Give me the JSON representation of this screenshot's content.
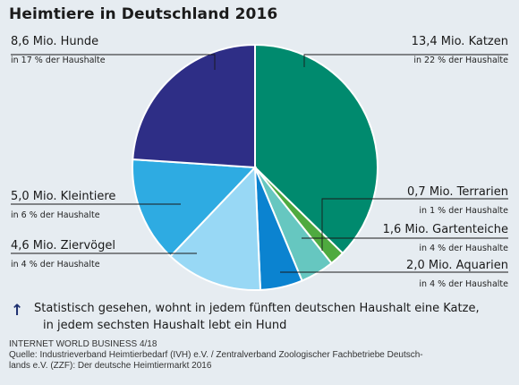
{
  "title": "Heimtiere in Deutschland 2016",
  "chart_data": {
    "type": "pie",
    "slices": [
      {
        "label": "13,4 Mio. Katzen",
        "sub": "in 22 % der Haushalte",
        "value": 13.4,
        "color": "#008a6e"
      },
      {
        "label": "0,7 Mio. Terrarien",
        "sub": "in 1 % der Haushalte",
        "value": 0.7,
        "color": "#4faa3f"
      },
      {
        "label": "1,6 Mio. Gartenteiche",
        "sub": "in 4 % der Haushalte",
        "value": 1.6,
        "color": "#66c7c0"
      },
      {
        "label": "2,0 Mio. Aquarien",
        "sub": "in 4 % der Haushalte",
        "value": 2.0,
        "color": "#0b83d0"
      },
      {
        "label": "4,6 Mio. Ziervögel",
        "sub": "in 4 % der Haushalte",
        "value": 4.6,
        "color": "#98d8f5"
      },
      {
        "label": "5,0 Mio. Kleintiere",
        "sub": "in 6 % der Haushalte",
        "value": 5.0,
        "color": "#2eabe2"
      },
      {
        "label": "8,6 Mio. Hunde",
        "sub": "in 17 % der Haushalte",
        "value": 8.6,
        "color": "#2e2e86"
      }
    ]
  },
  "statistic": {
    "line1": "Statistisch gesehen, wohnt in jedem fünften deutschen Haushalt eine Katze,",
    "line2": "in jedem sechsten Haushalt lebt ein Hund"
  },
  "source": {
    "publication": "INTERNET WORLD BUSINESS 4/18",
    "line1": "Quelle: Industrieverband Heimtierbedarf (IVH) e.V. / Zentralverband Zoologischer Fachbetriebe Deutsch-",
    "line2": "lands e.V. (ZZF): Der deutsche Heimtiermarkt 2016"
  }
}
